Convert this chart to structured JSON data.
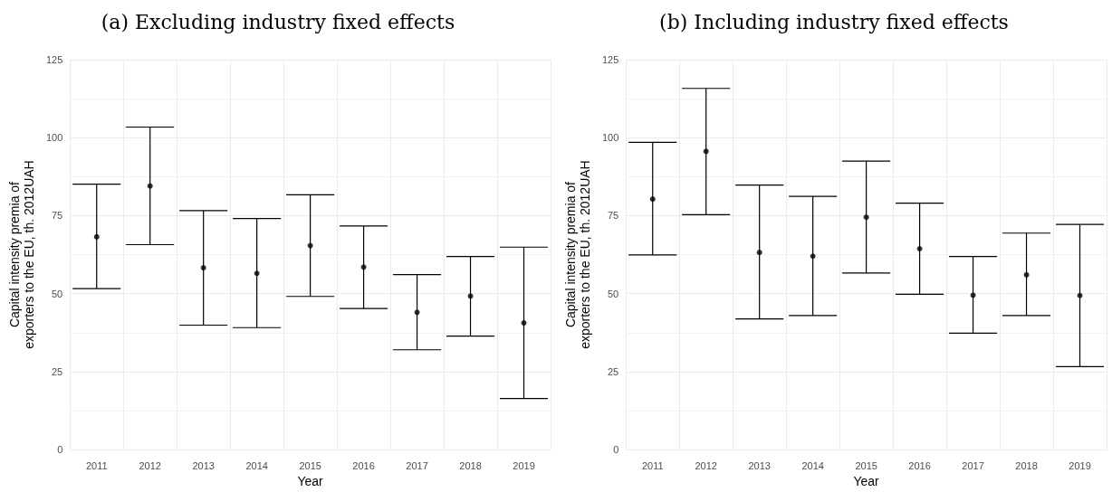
{
  "chart_data": [
    {
      "type": "scatter",
      "title": "(a) Excluding industry fixed effects",
      "xlabel": "Year",
      "ylabel": "Capital intensity premia of\nexporters to the EU, th. 2012UAH",
      "categories": [
        "2011",
        "2012",
        "2013",
        "2014",
        "2015",
        "2016",
        "2017",
        "2018",
        "2019"
      ],
      "values": [
        68.2,
        84.5,
        58.3,
        56.5,
        65.4,
        58.5,
        44.0,
        49.2,
        40.6
      ],
      "errors": [
        [
          51.6,
          85.1
        ],
        [
          65.7,
          103.4
        ],
        [
          39.9,
          76.6
        ],
        [
          39.1,
          74.1
        ],
        [
          49.1,
          81.7
        ],
        [
          45.2,
          71.7
        ],
        [
          32.0,
          56.1
        ],
        [
          36.4,
          61.9
        ],
        [
          16.4,
          64.9
        ]
      ],
      "color": "#000000",
      "marker": "circle",
      "grid": true,
      "ylim": [
        0,
        125
      ],
      "yticks": [
        0,
        25,
        50,
        75,
        100,
        125
      ]
    },
    {
      "type": "scatter",
      "title": "(b) Including industry fixed effects",
      "xlabel": "Year",
      "ylabel": "Capital intensity premia of\nexporters to the EU, th. 2012UAH",
      "categories": [
        "2011",
        "2012",
        "2013",
        "2014",
        "2015",
        "2016",
        "2017",
        "2018",
        "2019"
      ],
      "values": [
        80.3,
        95.6,
        63.2,
        62.0,
        74.5,
        64.4,
        49.5,
        56.0,
        49.4
      ],
      "errors": [
        [
          62.4,
          98.5
        ],
        [
          75.3,
          115.8
        ],
        [
          41.9,
          84.8
        ],
        [
          43.0,
          81.2
        ],
        [
          56.6,
          92.5
        ],
        [
          49.8,
          79.0
        ],
        [
          37.3,
          61.9
        ],
        [
          43.0,
          69.4
        ],
        [
          26.6,
          72.2
        ]
      ],
      "color": "#000000",
      "marker": "circle",
      "grid": true,
      "ylim": [
        0,
        125
      ],
      "yticks": [
        0,
        25,
        50,
        75,
        100,
        125
      ]
    }
  ]
}
